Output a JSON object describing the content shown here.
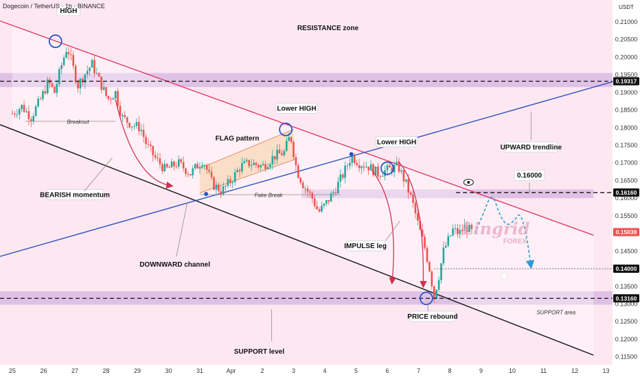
{
  "header": {
    "symbol": "Dogecoin / TetherUS · 1h · BINANCE",
    "quote_currency": "USDT"
  },
  "chart_data": {
    "type": "candlestick",
    "title": "",
    "x_ticks": [
      "25",
      "26",
      "27",
      "28",
      "29",
      "30",
      "31",
      "Apr",
      "2",
      "3",
      "4",
      "5",
      "6",
      "7",
      "8",
      "9",
      "10",
      "11",
      "12",
      "13"
    ],
    "x_index_range": [
      0,
      19.35
    ],
    "y_ticks": [
      0.21,
      0.205,
      0.2,
      0.195,
      0.19,
      0.185,
      0.18,
      0.175,
      0.17,
      0.165,
      0.16,
      0.155,
      0.15,
      0.145,
      0.14,
      0.135,
      0.13,
      0.125,
      0.12,
      0.115
    ],
    "y_tick_labels": [
      "0.21000",
      "0.20500",
      "0.20000",
      "0.19500",
      "0.19000",
      "0.18500",
      "0.18000",
      "0.17500",
      "0.17000",
      "0.16500",
      "0.16000",
      "0.15500",
      "0.15000",
      "0.14500",
      "0.14000",
      "0.13500",
      "0.13000",
      "0.12500",
      "0.12000",
      "0.11500"
    ],
    "ylim": [
      0.1128,
      0.2162
    ],
    "grid": false,
    "colors": {
      "up": "#26a69a",
      "down": "#ef5350",
      "resistance_line": "#e23a6a",
      "support_line": "#111111",
      "trendline": "#2d4fbf",
      "zone": "#c9a0dc",
      "arrow": "#d32f4f",
      "projection": "#2f9bd6",
      "annotation_ring": "#2855c8"
    },
    "price_path": [
      [
        0,
        0.184
      ],
      [
        0.3,
        0.186
      ],
      [
        0.6,
        0.183
      ],
      [
        0.9,
        0.188
      ],
      [
        1.15,
        0.193
      ],
      [
        1.35,
        0.19
      ],
      [
        1.55,
        0.197
      ],
      [
        1.75,
        0.203
      ],
      [
        1.85,
        0.2
      ],
      [
        2.1,
        0.192
      ],
      [
        2.3,
        0.195
      ],
      [
        2.55,
        0.198
      ],
      [
        2.8,
        0.193
      ],
      [
        3.05,
        0.188
      ],
      [
        3.3,
        0.19
      ],
      [
        3.5,
        0.183
      ],
      [
        3.8,
        0.181
      ],
      [
        4.1,
        0.18
      ],
      [
        4.3,
        0.175
      ],
      [
        4.6,
        0.171
      ],
      [
        4.9,
        0.168
      ],
      [
        5.3,
        0.17
      ],
      [
        5.7,
        0.167
      ],
      [
        6.1,
        0.171
      ],
      [
        6.4,
        0.164
      ],
      [
        6.7,
        0.162
      ],
      [
        7.0,
        0.165
      ],
      [
        7.3,
        0.169
      ],
      [
        7.6,
        0.17
      ],
      [
        8.0,
        0.169
      ],
      [
        8.4,
        0.172
      ],
      [
        8.7,
        0.173
      ],
      [
        8.9,
        0.178
      ],
      [
        9.1,
        0.168
      ],
      [
        9.3,
        0.164
      ],
      [
        9.6,
        0.16
      ],
      [
        9.8,
        0.156
      ],
      [
        10.0,
        0.158
      ],
      [
        10.3,
        0.162
      ],
      [
        10.6,
        0.167
      ],
      [
        10.85,
        0.172
      ],
      [
        11.1,
        0.17
      ],
      [
        11.4,
        0.169
      ],
      [
        11.7,
        0.167
      ],
      [
        12.0,
        0.168
      ],
      [
        12.35,
        0.169
      ],
      [
        12.6,
        0.164
      ],
      [
        12.8,
        0.159
      ],
      [
        13.0,
        0.152
      ],
      [
        13.2,
        0.146
      ],
      [
        13.35,
        0.14
      ],
      [
        13.5,
        0.132
      ],
      [
        13.65,
        0.138
      ],
      [
        13.8,
        0.145
      ],
      [
        13.95,
        0.148
      ],
      [
        14.1,
        0.151
      ],
      [
        14.3,
        0.15
      ],
      [
        14.5,
        0.152
      ],
      [
        14.7,
        0.1504
      ]
    ],
    "levels": [
      {
        "name": "resistance",
        "value": 0.19317,
        "label": "0.19317"
      },
      {
        "name": "key",
        "value": 0.1616,
        "label": "0.16160"
      },
      {
        "name": "current",
        "value": 0.15039,
        "label": "0.15039"
      },
      {
        "name": "target",
        "value": 0.14,
        "label": "0.14000"
      },
      {
        "name": "support",
        "value": 0.1316,
        "label": "0.13160"
      }
    ],
    "zones": [
      {
        "name": "resistance-zone",
        "y": [
          0.1915,
          0.1955
        ],
        "x": [
          0,
          19.35
        ]
      },
      {
        "name": "mid-zone",
        "y": [
          0.16,
          0.1625
        ],
        "x": [
          9.65,
          18.6
        ]
      },
      {
        "name": "support-zone",
        "y": [
          0.1298,
          0.1336
        ],
        "x": [
          0,
          19.35
        ]
      }
    ],
    "lines": [
      {
        "name": "channel-top",
        "from": [
          0,
          0.209
        ],
        "to": [
          18.6,
          0.1495
        ]
      },
      {
        "name": "channel-bottom",
        "from": [
          0,
          0.1795
        ],
        "to": [
          18.6,
          0.1155
        ]
      },
      {
        "name": "upward-trendline",
        "from": [
          0,
          0.1445
        ],
        "to": [
          19.4,
          0.1935
        ]
      }
    ],
    "projection": [
      [
        14.8,
        0.15
      ],
      [
        15.05,
        0.155
      ],
      [
        15.35,
        0.162
      ],
      [
        15.6,
        0.155
      ],
      [
        15.85,
        0.152
      ],
      [
        16.1,
        0.154
      ],
      [
        16.25,
        0.156
      ],
      [
        16.45,
        0.15
      ],
      [
        16.6,
        0.1405
      ]
    ],
    "annotations": [
      {
        "text": "HIGH",
        "x": 1.8,
        "y": 0.2132
      },
      {
        "text": "RESISTANCE zone",
        "x": 10.1,
        "y": 0.2085
      },
      {
        "text": "Lower HIGH",
        "x": 9.1,
        "y": 0.1855
      },
      {
        "text": "Lower HIGH",
        "x": 12.3,
        "y": 0.176
      },
      {
        "text": "FLAG pattern",
        "x": 7.2,
        "y": 0.177
      },
      {
        "text": "Breakout",
        "x": 2.1,
        "y": 0.1818
      },
      {
        "text": "Fake Break",
        "x": 8.2,
        "y": 0.161
      },
      {
        "text": "BEARISH momentum",
        "x": 2.0,
        "y": 0.161
      },
      {
        "text": "DOWNWARD channel",
        "x": 5.2,
        "y": 0.1415
      },
      {
        "text": "IMPULSE leg",
        "x": 11.3,
        "y": 0.1465
      },
      {
        "text": "UPWARD trendline",
        "x": 16.6,
        "y": 0.1745
      },
      {
        "text": "0.16000",
        "x": 16.55,
        "y": 0.1665
      },
      {
        "text": "PRICE rebound",
        "x": 13.45,
        "y": 0.1265
      },
      {
        "text": "SUPPORT area",
        "x": 17.4,
        "y": 0.1278
      },
      {
        "text": "SUPPORT level",
        "x": 7.9,
        "y": 0.1168
      }
    ]
  },
  "watermark": {
    "brand": "Lingrid",
    "sub": "FOREX"
  }
}
